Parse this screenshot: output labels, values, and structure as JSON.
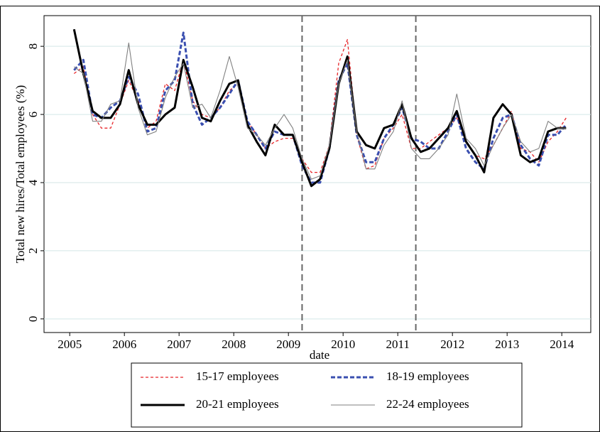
{
  "chart_data": {
    "type": "line",
    "x_label": "date",
    "y_label": "Total new hires/Total employees (%)",
    "xlim": [
      2004.53,
      2014.53
    ],
    "ylim": [
      -0.4,
      8.9
    ],
    "xticks": [
      2005,
      2006,
      2007,
      2008,
      2009,
      2010,
      2011,
      2012,
      2013,
      2014
    ],
    "yticks": [
      0,
      2,
      4,
      6,
      8
    ],
    "grid": true,
    "legend": "bottom",
    "vlines": [
      2009.25,
      2011.33
    ],
    "x": [
      2005.08,
      2005.25,
      2005.42,
      2005.58,
      2005.75,
      2005.92,
      2006.08,
      2006.25,
      2006.42,
      2006.58,
      2006.75,
      2006.92,
      2007.08,
      2007.25,
      2007.42,
      2007.58,
      2007.75,
      2007.92,
      2008.08,
      2008.25,
      2008.42,
      2008.58,
      2008.75,
      2008.92,
      2009.08,
      2009.25,
      2009.42,
      2009.58,
      2009.75,
      2009.92,
      2010.08,
      2010.25,
      2010.42,
      2010.58,
      2010.75,
      2010.92,
      2011.08,
      2011.25,
      2011.42,
      2011.58,
      2011.75,
      2011.92,
      2012.08,
      2012.25,
      2012.42,
      2012.58,
      2012.75,
      2012.92,
      2013.08,
      2013.25,
      2013.42,
      2013.58,
      2013.75,
      2013.92,
      2014.08
    ],
    "series": [
      {
        "name": "15-17 employees",
        "color": "#e8262a",
        "dash": true,
        "bold": false,
        "values": [
          7.2,
          7.4,
          6.0,
          5.6,
          5.6,
          6.3,
          7.0,
          6.4,
          5.6,
          5.8,
          6.9,
          6.7,
          7.6,
          6.4,
          6.0,
          5.9,
          6.2,
          6.7,
          6.9,
          5.8,
          5.4,
          5.0,
          5.2,
          5.3,
          5.3,
          4.7,
          4.3,
          4.3,
          5.1,
          7.5,
          8.2,
          5.4,
          4.4,
          4.5,
          5.3,
          5.6,
          6.0,
          5.0,
          5.0,
          5.2,
          5.4,
          5.6,
          5.9,
          5.2,
          4.8,
          4.7,
          5.1,
          5.6,
          6.1,
          5.0,
          4.9,
          4.6,
          5.2,
          5.5,
          5.9
        ]
      },
      {
        "name": "18-19 employees",
        "color": "#3a4fb0",
        "dash": true,
        "bold": true,
        "values": [
          7.3,
          7.6,
          6.0,
          5.9,
          6.2,
          6.4,
          7.1,
          6.6,
          5.5,
          5.6,
          6.7,
          7.0,
          8.4,
          6.3,
          5.7,
          5.9,
          6.2,
          6.6,
          7.0,
          5.8,
          5.4,
          5.0,
          5.5,
          5.4,
          5.4,
          4.5,
          4.0,
          4.0,
          5.0,
          7.0,
          7.5,
          5.4,
          4.6,
          4.6,
          5.3,
          5.7,
          6.2,
          5.3,
          5.2,
          5.0,
          5.0,
          5.5,
          6.0,
          5.0,
          4.6,
          4.4,
          5.3,
          5.9,
          6.0,
          5.1,
          4.7,
          4.5,
          5.4,
          5.4,
          5.7
        ]
      },
      {
        "name": "20-21 employees",
        "color": "#000000",
        "dash": false,
        "bold": true,
        "values": [
          8.5,
          7.2,
          6.1,
          5.9,
          5.9,
          6.3,
          7.3,
          6.3,
          5.7,
          5.7,
          6.0,
          6.2,
          7.6,
          6.8,
          5.9,
          5.8,
          6.4,
          6.9,
          7.0,
          5.7,
          5.2,
          4.8,
          5.7,
          5.4,
          5.4,
          4.6,
          3.9,
          4.1,
          5.0,
          6.9,
          7.7,
          5.5,
          5.1,
          5.0,
          5.6,
          5.7,
          6.3,
          5.3,
          4.9,
          5.0,
          5.3,
          5.6,
          6.1,
          5.2,
          4.8,
          4.3,
          5.9,
          6.3,
          6.0,
          4.8,
          4.6,
          4.7,
          5.5,
          5.6,
          5.6
        ]
      },
      {
        "name": "22-24 employees",
        "color": "#808080",
        "dash": false,
        "bold": false,
        "values": [
          7.4,
          7.2,
          5.8,
          5.8,
          6.3,
          6.4,
          8.1,
          6.2,
          5.4,
          5.5,
          6.5,
          7.1,
          7.5,
          6.2,
          6.3,
          5.9,
          6.7,
          7.7,
          6.8,
          5.6,
          5.4,
          5.1,
          5.6,
          6.0,
          5.6,
          4.7,
          4.1,
          4.2,
          5.1,
          6.9,
          7.6,
          5.5,
          4.4,
          4.4,
          5.1,
          5.5,
          6.4,
          5.0,
          4.7,
          4.7,
          5.0,
          5.4,
          6.6,
          5.3,
          5.0,
          4.5,
          5.1,
          5.6,
          6.0,
          5.2,
          4.9,
          5.0,
          5.8,
          5.6,
          5.6
        ]
      }
    ]
  }
}
